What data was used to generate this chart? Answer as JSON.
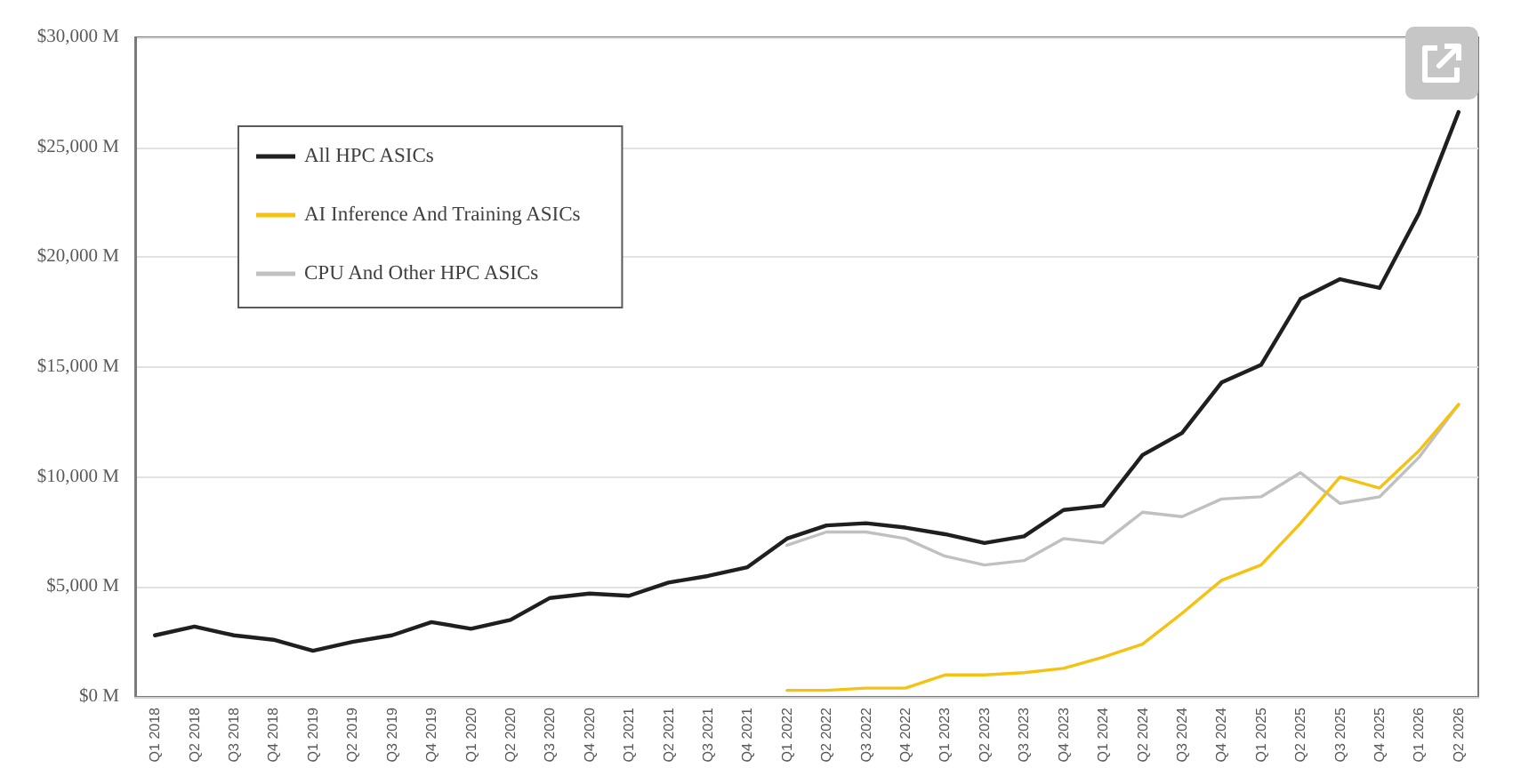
{
  "chart_data": {
    "type": "line",
    "categories": [
      "Q1 2018",
      "Q2 2018",
      "Q3 2018",
      "Q4 2018",
      "Q1 2019",
      "Q2 2019",
      "Q3 2019",
      "Q4 2019",
      "Q1 2020",
      "Q2 2020",
      "Q3 2020",
      "Q4 2020",
      "Q1 2021",
      "Q2 2021",
      "Q3 2021",
      "Q4 2021",
      "Q1 2022",
      "Q2 2022",
      "Q3 2022",
      "Q4 2022",
      "Q1 2023",
      "Q2 2023",
      "Q3 2023",
      "Q4 2023",
      "Q1 2024",
      "Q2 2024",
      "Q3 2024",
      "Q4 2024",
      "Q1 2025",
      "Q2 2025",
      "Q3 2025",
      "Q4 2025",
      "Q1 2026",
      "Q2 2026"
    ],
    "series": [
      {
        "name": "All HPC ASICs",
        "color": "#1f1f1f",
        "values": [
          2800,
          3200,
          2800,
          2600,
          2100,
          2500,
          2800,
          3400,
          3100,
          3500,
          4500,
          4700,
          4600,
          5200,
          5500,
          5900,
          7200,
          7800,
          7900,
          7700,
          7400,
          7000,
          7300,
          8500,
          8700,
          11000,
          12000,
          14300,
          15100,
          18100,
          19000,
          18600,
          22000,
          26600
        ]
      },
      {
        "name": "AI Inference And Training ASICs",
        "color": "#f5c211",
        "values": [
          null,
          null,
          null,
          null,
          null,
          null,
          null,
          null,
          null,
          null,
          null,
          null,
          null,
          null,
          null,
          null,
          300,
          300,
          400,
          400,
          1000,
          1000,
          1100,
          1300,
          1800,
          2400,
          3800,
          5300,
          6000,
          7900,
          10000,
          9500,
          11200,
          13300
        ]
      },
      {
        "name": "CPU And Other HPC ASICs",
        "color": "#c0c0c0",
        "values": [
          null,
          null,
          null,
          null,
          null,
          null,
          null,
          null,
          null,
          null,
          null,
          null,
          null,
          null,
          null,
          null,
          6900,
          7500,
          7500,
          7200,
          6400,
          6000,
          6200,
          7200,
          7000,
          8400,
          8200,
          9000,
          9100,
          10200,
          8800,
          9100,
          10900,
          13300
        ]
      }
    ],
    "ylim": [
      0,
      30000
    ],
    "yticks": [
      {
        "value": 0,
        "label": "$0 M"
      },
      {
        "value": 5000,
        "label": "$5,000 M"
      },
      {
        "value": 10000,
        "label": "$10,000 M"
      },
      {
        "value": 15000,
        "label": "$15,000 M"
      },
      {
        "value": 20000,
        "label": "$20,000 M"
      },
      {
        "value": 25000,
        "label": "$25,000 M"
      },
      {
        "value": 30000,
        "label": "$30,000 M"
      }
    ],
    "grid": "y",
    "legend": "top left"
  }
}
